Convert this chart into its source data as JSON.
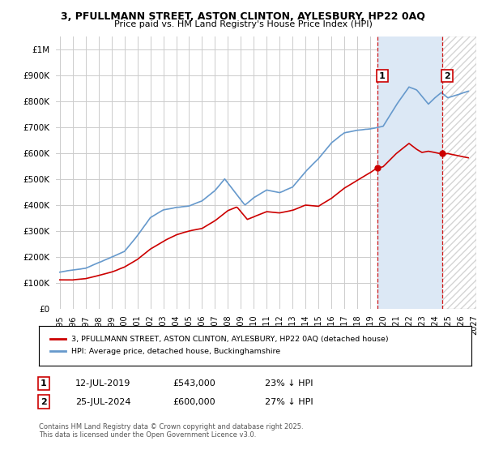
{
  "title": "3, PFULLMANN STREET, ASTON CLINTON, AYLESBURY, HP22 0AQ",
  "subtitle": "Price paid vs. HM Land Registry's House Price Index (HPI)",
  "legend_label_red": "3, PFULLMANN STREET, ASTON CLINTON, AYLESBURY, HP22 0AQ (detached house)",
  "legend_label_blue": "HPI: Average price, detached house, Buckinghamshire",
  "annotation1_date": "12-JUL-2019",
  "annotation1_price": "£543,000",
  "annotation1_hpi": "23% ↓ HPI",
  "annotation2_date": "25-JUL-2024",
  "annotation2_price": "£600,000",
  "annotation2_hpi": "27% ↓ HPI",
  "footnote": "Contains HM Land Registry data © Crown copyright and database right 2025.\nThis data is licensed under the Open Government Licence v3.0.",
  "ylim": [
    0,
    1050000
  ],
  "background_color": "#ffffff",
  "plot_bg_color": "#ffffff",
  "grid_color": "#cccccc",
  "red_color": "#cc0000",
  "blue_color": "#6699cc",
  "shade_color": "#dce8f5",
  "red_linewidth": 1.2,
  "blue_linewidth": 1.2,
  "marker1_x": 2019.54,
  "marker1_y": 543000,
  "marker2_x": 2024.56,
  "marker2_y": 600000,
  "vline1_x": 2019.54,
  "vline2_x": 2024.56,
  "xlim_left": 1994.7,
  "xlim_right": 2027.2
}
